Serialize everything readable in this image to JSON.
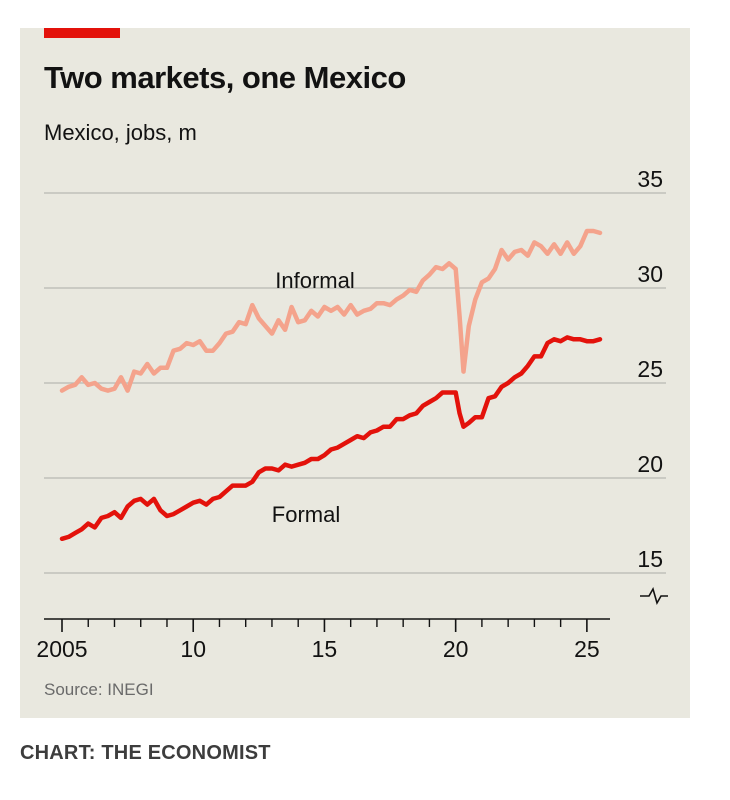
{
  "header": {
    "title": "Two markets, one Mexico",
    "subtitle": "Mexico, jobs, m"
  },
  "footer": {
    "source": "Source: INEGI",
    "credit": "CHART: THE ECONOMIST"
  },
  "colors": {
    "formal": "#e3120b",
    "informal": "#f4a38c",
    "grid": "#b7b7b2",
    "background": "#e9e8df",
    "accent": "#e3120b"
  },
  "chart_data": {
    "type": "line",
    "title": "Two markets, one Mexico",
    "subtitle": "Mexico, jobs, m",
    "xlabel": "",
    "ylabel": "Mexico, jobs, m",
    "ylim": [
      15,
      35
    ],
    "xlim": [
      2005,
      2025.5
    ],
    "y_ticks": [
      15,
      20,
      25,
      30,
      35
    ],
    "y_tick_labels": [
      "15",
      "20",
      "25",
      "30",
      "35"
    ],
    "y_axis_side": "right",
    "axis_break": true,
    "x_major_ticks": [
      2005,
      2010,
      2015,
      2020,
      2025
    ],
    "x_tick_labels": [
      "2005",
      "10",
      "15",
      "20",
      "25"
    ],
    "x_minor_ticks": [
      2006,
      2007,
      2008,
      2009,
      2011,
      2012,
      2013,
      2014,
      2016,
      2017,
      2018,
      2019,
      2021,
      2022,
      2023,
      2024
    ],
    "grid": true,
    "series": [
      {
        "name": "Informal",
        "label": "Informal",
        "points": [
          [
            2005.0,
            24.6
          ],
          [
            2005.25,
            24.8
          ],
          [
            2005.5,
            24.9
          ],
          [
            2005.75,
            25.3
          ],
          [
            2006.0,
            24.9
          ],
          [
            2006.25,
            25.0
          ],
          [
            2006.5,
            24.7
          ],
          [
            2006.75,
            24.6
          ],
          [
            2007.0,
            24.7
          ],
          [
            2007.25,
            25.3
          ],
          [
            2007.5,
            24.6
          ],
          [
            2007.75,
            25.6
          ],
          [
            2008.0,
            25.5
          ],
          [
            2008.25,
            26.0
          ],
          [
            2008.5,
            25.5
          ],
          [
            2008.75,
            25.8
          ],
          [
            2009.0,
            25.8
          ],
          [
            2009.25,
            26.7
          ],
          [
            2009.5,
            26.8
          ],
          [
            2009.75,
            27.1
          ],
          [
            2010.0,
            27.0
          ],
          [
            2010.25,
            27.2
          ],
          [
            2010.5,
            26.7
          ],
          [
            2010.75,
            26.7
          ],
          [
            2011.0,
            27.1
          ],
          [
            2011.25,
            27.6
          ],
          [
            2011.5,
            27.7
          ],
          [
            2011.75,
            28.2
          ],
          [
            2012.0,
            28.1
          ],
          [
            2012.25,
            29.1
          ],
          [
            2012.5,
            28.4
          ],
          [
            2012.75,
            28.0
          ],
          [
            2013.0,
            27.6
          ],
          [
            2013.25,
            28.3
          ],
          [
            2013.5,
            27.8
          ],
          [
            2013.75,
            29.0
          ],
          [
            2014.0,
            28.2
          ],
          [
            2014.25,
            28.3
          ],
          [
            2014.5,
            28.8
          ],
          [
            2014.75,
            28.5
          ],
          [
            2015.0,
            29.0
          ],
          [
            2015.25,
            28.8
          ],
          [
            2015.5,
            29.0
          ],
          [
            2015.75,
            28.6
          ],
          [
            2016.0,
            29.1
          ],
          [
            2016.25,
            28.6
          ],
          [
            2016.5,
            28.8
          ],
          [
            2016.75,
            28.9
          ],
          [
            2017.0,
            29.2
          ],
          [
            2017.25,
            29.2
          ],
          [
            2017.5,
            29.1
          ],
          [
            2017.75,
            29.4
          ],
          [
            2018.0,
            29.6
          ],
          [
            2018.25,
            29.9
          ],
          [
            2018.5,
            29.8
          ],
          [
            2018.75,
            30.4
          ],
          [
            2019.0,
            30.7
          ],
          [
            2019.25,
            31.1
          ],
          [
            2019.5,
            31.0
          ],
          [
            2019.75,
            31.3
          ],
          [
            2020.0,
            31.0
          ],
          [
            2020.15,
            28.5
          ],
          [
            2020.3,
            25.6
          ],
          [
            2020.5,
            28.0
          ],
          [
            2020.75,
            29.4
          ],
          [
            2021.0,
            30.3
          ],
          [
            2021.25,
            30.5
          ],
          [
            2021.5,
            31.0
          ],
          [
            2021.75,
            32.0
          ],
          [
            2022.0,
            31.5
          ],
          [
            2022.25,
            31.9
          ],
          [
            2022.5,
            32.0
          ],
          [
            2022.75,
            31.7
          ],
          [
            2023.0,
            32.4
          ],
          [
            2023.25,
            32.2
          ],
          [
            2023.5,
            31.8
          ],
          [
            2023.75,
            32.3
          ],
          [
            2024.0,
            31.8
          ],
          [
            2024.25,
            32.4
          ],
          [
            2024.5,
            31.8
          ],
          [
            2024.75,
            32.2
          ],
          [
            2025.0,
            33.0
          ],
          [
            2025.25,
            33.0
          ],
          [
            2025.5,
            32.9
          ]
        ]
      },
      {
        "name": "Formal",
        "label": "Formal",
        "points": [
          [
            2005.0,
            16.8
          ],
          [
            2005.25,
            16.9
          ],
          [
            2005.5,
            17.1
          ],
          [
            2005.75,
            17.3
          ],
          [
            2006.0,
            17.6
          ],
          [
            2006.25,
            17.4
          ],
          [
            2006.5,
            17.9
          ],
          [
            2006.75,
            18.0
          ],
          [
            2007.0,
            18.2
          ],
          [
            2007.25,
            17.9
          ],
          [
            2007.5,
            18.5
          ],
          [
            2007.75,
            18.8
          ],
          [
            2008.0,
            18.9
          ],
          [
            2008.25,
            18.6
          ],
          [
            2008.5,
            18.9
          ],
          [
            2008.75,
            18.3
          ],
          [
            2009.0,
            18.0
          ],
          [
            2009.25,
            18.1
          ],
          [
            2009.5,
            18.3
          ],
          [
            2009.75,
            18.5
          ],
          [
            2010.0,
            18.7
          ],
          [
            2010.25,
            18.8
          ],
          [
            2010.5,
            18.6
          ],
          [
            2010.75,
            18.9
          ],
          [
            2011.0,
            19.0
          ],
          [
            2011.25,
            19.3
          ],
          [
            2011.5,
            19.6
          ],
          [
            2011.75,
            19.6
          ],
          [
            2012.0,
            19.6
          ],
          [
            2012.25,
            19.8
          ],
          [
            2012.5,
            20.3
          ],
          [
            2012.75,
            20.5
          ],
          [
            2013.0,
            20.5
          ],
          [
            2013.25,
            20.4
          ],
          [
            2013.5,
            20.7
          ],
          [
            2013.75,
            20.6
          ],
          [
            2014.0,
            20.7
          ],
          [
            2014.25,
            20.8
          ],
          [
            2014.5,
            21.0
          ],
          [
            2014.75,
            21.0
          ],
          [
            2015.0,
            21.2
          ],
          [
            2015.25,
            21.5
          ],
          [
            2015.5,
            21.6
          ],
          [
            2015.75,
            21.8
          ],
          [
            2016.0,
            22.0
          ],
          [
            2016.25,
            22.2
          ],
          [
            2016.5,
            22.1
          ],
          [
            2016.75,
            22.4
          ],
          [
            2017.0,
            22.5
          ],
          [
            2017.25,
            22.7
          ],
          [
            2017.5,
            22.7
          ],
          [
            2017.75,
            23.1
          ],
          [
            2018.0,
            23.1
          ],
          [
            2018.25,
            23.3
          ],
          [
            2018.5,
            23.4
          ],
          [
            2018.75,
            23.8
          ],
          [
            2019.0,
            24.0
          ],
          [
            2019.25,
            24.2
          ],
          [
            2019.5,
            24.5
          ],
          [
            2019.75,
            24.5
          ],
          [
            2020.0,
            24.5
          ],
          [
            2020.15,
            23.4
          ],
          [
            2020.3,
            22.7
          ],
          [
            2020.5,
            22.9
          ],
          [
            2020.75,
            23.2
          ],
          [
            2021.0,
            23.2
          ],
          [
            2021.25,
            24.2
          ],
          [
            2021.5,
            24.3
          ],
          [
            2021.75,
            24.8
          ],
          [
            2022.0,
            25.0
          ],
          [
            2022.25,
            25.3
          ],
          [
            2022.5,
            25.5
          ],
          [
            2022.75,
            25.9
          ],
          [
            2023.0,
            26.4
          ],
          [
            2023.25,
            26.4
          ],
          [
            2023.5,
            27.1
          ],
          [
            2023.75,
            27.3
          ],
          [
            2024.0,
            27.2
          ],
          [
            2024.25,
            27.4
          ],
          [
            2024.5,
            27.3
          ],
          [
            2024.75,
            27.3
          ],
          [
            2025.0,
            27.2
          ],
          [
            2025.25,
            27.2
          ],
          [
            2025.5,
            27.3
          ]
        ]
      }
    ]
  }
}
